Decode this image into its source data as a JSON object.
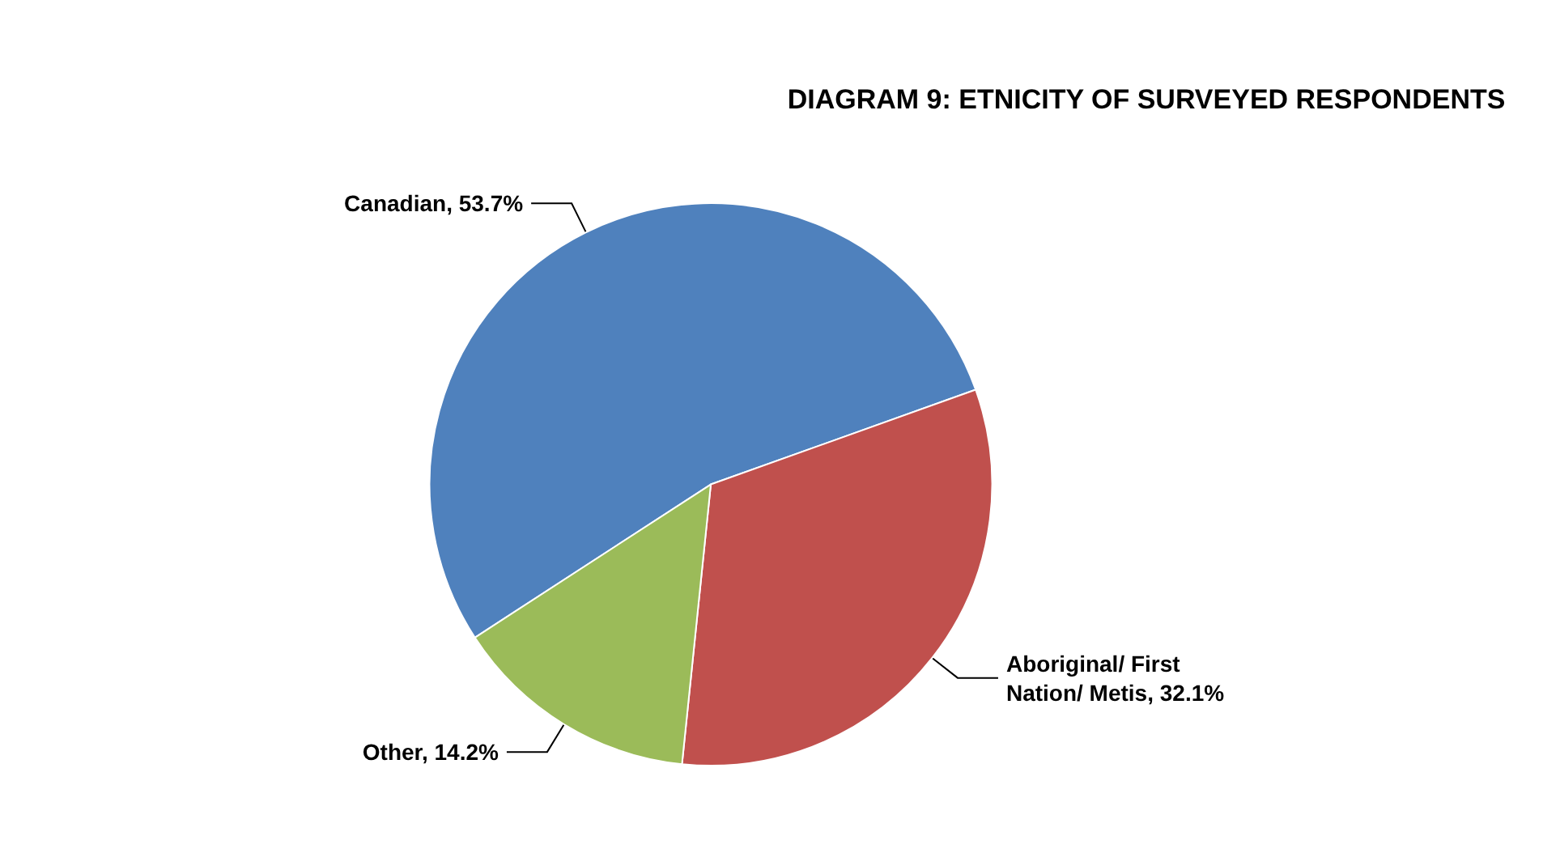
{
  "chart_data": {
    "type": "pie",
    "title": "DIAGRAM 9: ETNICITY OF SURVEYED RESPONDENTS",
    "categories": [
      "Canadian",
      "Aboriginal/ First Nation/ Metis",
      "Other"
    ],
    "values": [
      53.7,
      32.1,
      14.2
    ],
    "value_labels": [
      "53.7%",
      "32.1%",
      "14.2%"
    ],
    "colors": [
      "#4f81bd",
      "#c0504d",
      "#9bbb59"
    ],
    "legend": false
  }
}
